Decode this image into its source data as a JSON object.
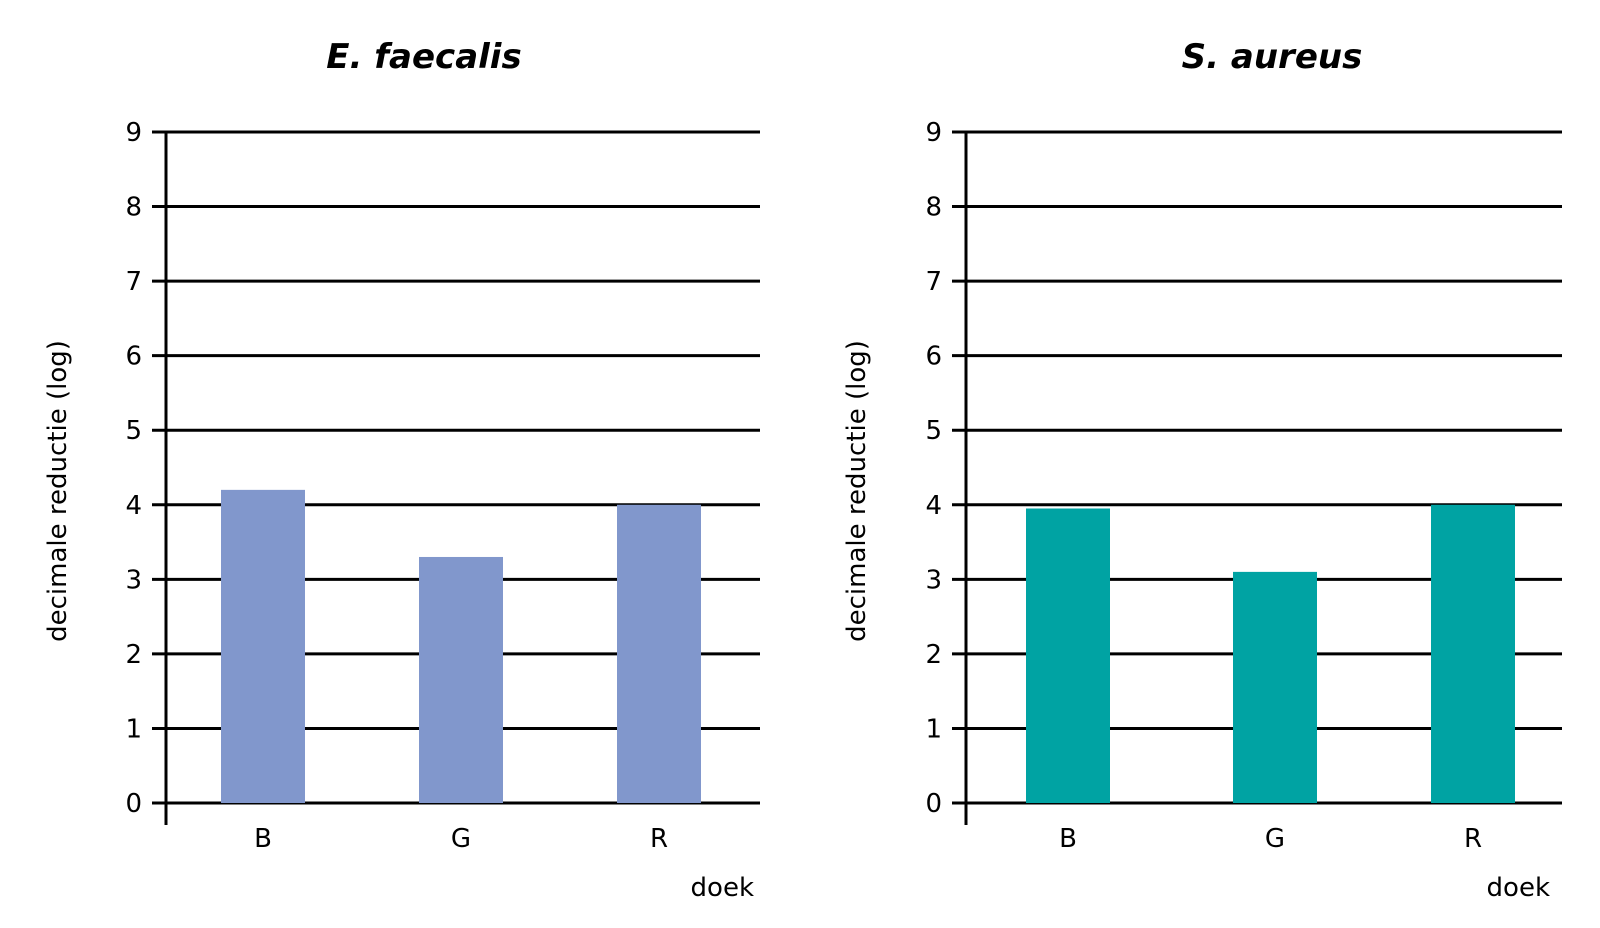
{
  "chart_data": [
    {
      "type": "bar",
      "title": "E. faecalis",
      "xlabel": "doek",
      "ylabel": "decimale reductie (log)",
      "categories": [
        "B",
        "G",
        "R"
      ],
      "values": [
        4.2,
        3.3,
        4.0
      ],
      "ylim": [
        0,
        9
      ],
      "yticks": [
        "0",
        "1",
        "2",
        "3",
        "4",
        "5",
        "6",
        "7",
        "8",
        "9"
      ],
      "grid": true,
      "color": "#8197cc"
    },
    {
      "type": "bar",
      "title": "S. aureus",
      "xlabel": "doek",
      "ylabel": "decimale reductie (log)",
      "categories": [
        "B",
        "G",
        "R"
      ],
      "values": [
        3.95,
        3.1,
        4.0
      ],
      "ylim": [
        0,
        9
      ],
      "yticks": [
        "0",
        "1",
        "2",
        "3",
        "4",
        "5",
        "6",
        "7",
        "8",
        "9"
      ],
      "grid": true,
      "color": "#00a3a3"
    }
  ]
}
